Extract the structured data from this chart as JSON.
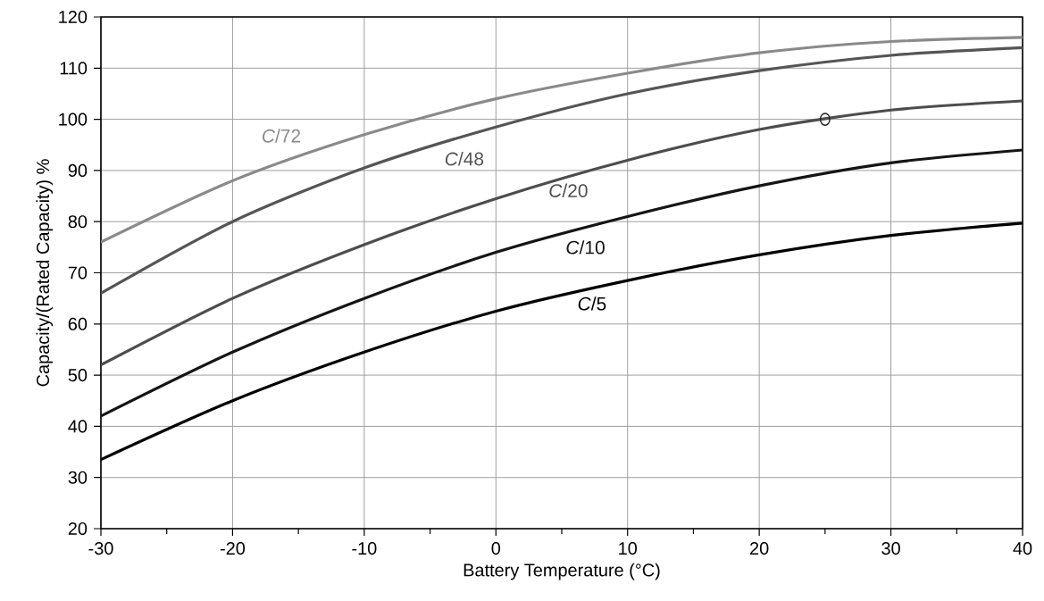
{
  "chart_data": {
    "type": "line",
    "xlabel": "Battery Temperature (°C)",
    "ylabel": "Capacity/(Rated Capacity) %",
    "x": [
      -30,
      -20,
      -10,
      0,
      10,
      20,
      30,
      40
    ],
    "series": [
      {
        "name": "*C*/72",
        "color": "#8a8a8a",
        "values": [
          76,
          88,
          97,
          104,
          109,
          113,
          115.2,
          116
        ]
      },
      {
        "name": "*C*/48",
        "color": "#555555",
        "values": [
          66,
          80,
          90.5,
          98.5,
          105,
          109.5,
          112.5,
          114
        ]
      },
      {
        "name": "*C*/20",
        "color": "#4d4d4d",
        "values": [
          52,
          65,
          75.5,
          84.5,
          92,
          98,
          101.8,
          103.6
        ]
      },
      {
        "name": "*C*/10",
        "color": "#151515",
        "values": [
          42,
          54.5,
          65,
          74,
          81,
          87,
          91.5,
          94
        ]
      },
      {
        "name": "*C*/5",
        "color": "#000000",
        "values": [
          33.5,
          45,
          54.5,
          62.5,
          68.5,
          73.5,
          77.3,
          79.7
        ]
      },
      {
        "type": "scatter",
        "x": [
          25
        ],
        "values": [
          100
        ],
        "color": "#222222",
        "marker": "circle"
      }
    ],
    "xlim": [
      -30,
      40
    ],
    "ylim": [
      20,
      120
    ],
    "xticks": [
      -30,
      {
        "value": -25,
        "label": null
      },
      -20,
      {
        "value": -15,
        "label": null
      },
      -10,
      {
        "value": -5,
        "label": null
      },
      0,
      {
        "value": 5,
        "label": null
      },
      10,
      {
        "value": 15,
        "label": null
      },
      20,
      {
        "value": 25,
        "label": null
      },
      30,
      {
        "value": 35,
        "label": null
      },
      40
    ],
    "yticks": [
      20,
      30,
      40,
      50,
      60,
      70,
      80,
      90,
      100,
      110,
      120
    ],
    "grid": true,
    "marker": "none",
    "line_style": "solid"
  }
}
